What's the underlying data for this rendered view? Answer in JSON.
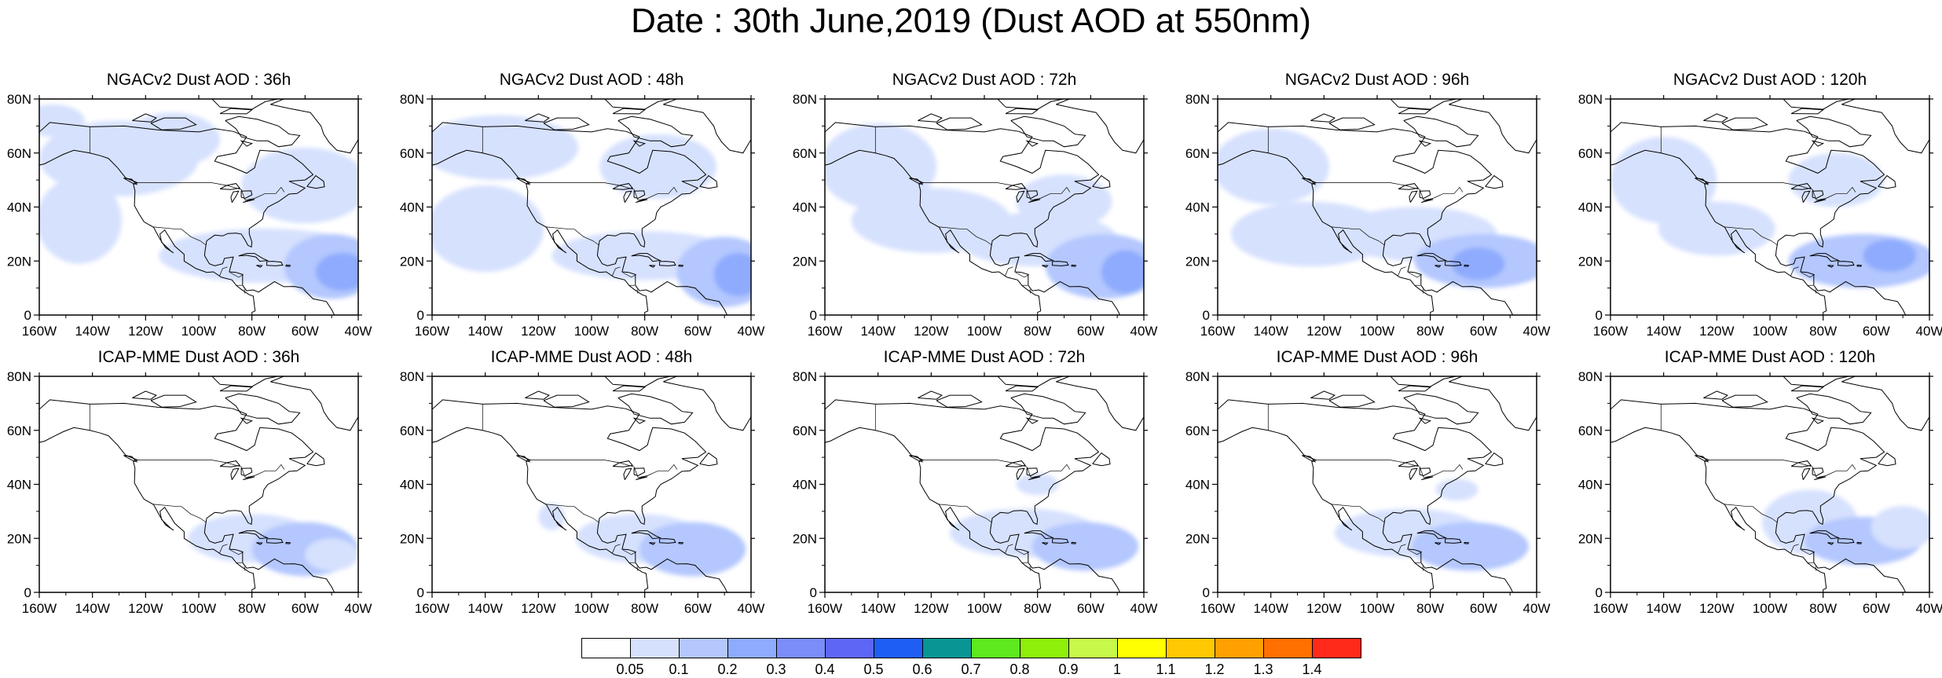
{
  "title": "Date : 30th June,2019 (Dust AOD at 550nm)",
  "lon_ticks": [
    "160W",
    "140W",
    "120W",
    "100W",
    "80W",
    "60W",
    "40W"
  ],
  "lat_ticks": [
    "0",
    "20N",
    "40N",
    "60N",
    "80N"
  ],
  "map_extent": {
    "lon_min": -160,
    "lon_max": -40,
    "lat_min": 0,
    "lat_max": 80
  },
  "panels": [
    {
      "title": "NGACv2 Dust AOD : 36h",
      "model": "NGACv2",
      "lead": "36h",
      "blobs": [
        {
          "lon": -130,
          "lat": 58,
          "rlon": 30,
          "rlat": 14,
          "level": 0
        },
        {
          "lon": -145,
          "lat": 35,
          "rlon": 16,
          "rlat": 16,
          "level": 0
        },
        {
          "lon": -110,
          "lat": 65,
          "rlon": 18,
          "rlat": 10,
          "level": 0
        },
        {
          "lon": -60,
          "lat": 48,
          "rlon": 24,
          "rlat": 14,
          "level": 0
        },
        {
          "lon": -75,
          "lat": 22,
          "rlon": 40,
          "rlat": 10,
          "level": 0
        },
        {
          "lon": -50,
          "lat": 18,
          "rlon": 18,
          "rlat": 12,
          "level": 1
        },
        {
          "lon": -46,
          "lat": 16,
          "rlon": 10,
          "rlat": 7,
          "level": 2
        },
        {
          "lon": -155,
          "lat": 72,
          "rlon": 12,
          "rlat": 6,
          "level": 0
        }
      ]
    },
    {
      "title": "NGACv2 Dust AOD : 48h",
      "model": "NGACv2",
      "lead": "48h",
      "blobs": [
        {
          "lon": -135,
          "lat": 62,
          "rlon": 30,
          "rlat": 12,
          "level": 0
        },
        {
          "lon": -140,
          "lat": 32,
          "rlon": 22,
          "rlat": 16,
          "level": 0
        },
        {
          "lon": -75,
          "lat": 55,
          "rlon": 22,
          "rlat": 12,
          "level": 0
        },
        {
          "lon": -80,
          "lat": 22,
          "rlon": 35,
          "rlat": 9,
          "level": 0
        },
        {
          "lon": -50,
          "lat": 16,
          "rlon": 18,
          "rlat": 13,
          "level": 1
        },
        {
          "lon": -45,
          "lat": 15,
          "rlon": 9,
          "rlat": 8,
          "level": 2
        }
      ]
    },
    {
      "title": "NGACv2 Dust AOD : 72h",
      "model": "NGACv2",
      "lead": "72h",
      "blobs": [
        {
          "lon": -140,
          "lat": 55,
          "rlon": 22,
          "rlat": 16,
          "level": 0
        },
        {
          "lon": -120,
          "lat": 35,
          "rlon": 30,
          "rlat": 12,
          "level": 0
        },
        {
          "lon": -80,
          "lat": 28,
          "rlon": 30,
          "rlat": 10,
          "level": 0
        },
        {
          "lon": -70,
          "lat": 42,
          "rlon": 18,
          "rlat": 10,
          "level": 0
        },
        {
          "lon": -55,
          "lat": 18,
          "rlon": 22,
          "rlat": 12,
          "level": 1
        },
        {
          "lon": -47,
          "lat": 16,
          "rlon": 9,
          "rlat": 8,
          "level": 2
        }
      ]
    },
    {
      "title": "NGACv2 Dust AOD : 96h",
      "model": "NGACv2",
      "lead": "96h",
      "blobs": [
        {
          "lon": -140,
          "lat": 55,
          "rlon": 22,
          "rlat": 14,
          "level": 0
        },
        {
          "lon": -125,
          "lat": 30,
          "rlon": 30,
          "rlat": 12,
          "level": 0
        },
        {
          "lon": -85,
          "lat": 30,
          "rlon": 30,
          "rlat": 10,
          "level": 0
        },
        {
          "lon": -60,
          "lat": 20,
          "rlon": 26,
          "rlat": 10,
          "level": 1
        },
        {
          "lon": -62,
          "lat": 19,
          "rlon": 10,
          "rlat": 6,
          "level": 2
        }
      ]
    },
    {
      "title": "NGACv2 Dust AOD : 120h",
      "model": "NGACv2",
      "lead": "120h",
      "blobs": [
        {
          "lon": -140,
          "lat": 50,
          "rlon": 20,
          "rlat": 16,
          "level": 0
        },
        {
          "lon": -120,
          "lat": 32,
          "rlon": 22,
          "rlat": 10,
          "level": 0
        },
        {
          "lon": -75,
          "lat": 50,
          "rlon": 18,
          "rlat": 10,
          "level": 0
        },
        {
          "lon": -65,
          "lat": 20,
          "rlon": 28,
          "rlat": 10,
          "level": 1
        },
        {
          "lon": -55,
          "lat": 22,
          "rlon": 10,
          "rlat": 6,
          "level": 2
        }
      ]
    },
    {
      "title": "ICAP-MME Dust AOD : 36h",
      "model": "ICAP-MME",
      "lead": "36h",
      "blobs": [
        {
          "lon": -80,
          "lat": 20,
          "rlon": 24,
          "rlat": 9,
          "level": 0
        },
        {
          "lon": -60,
          "lat": 16,
          "rlon": 20,
          "rlat": 10,
          "level": 1
        },
        {
          "lon": -50,
          "lat": 14,
          "rlon": 10,
          "rlat": 6,
          "level": 0
        }
      ]
    },
    {
      "title": "ICAP-MME Dust AOD : 48h",
      "model": "ICAP-MME",
      "lead": "48h",
      "blobs": [
        {
          "lon": -82,
          "lat": 20,
          "rlon": 24,
          "rlat": 9,
          "level": 0
        },
        {
          "lon": -62,
          "lat": 16,
          "rlon": 20,
          "rlat": 10,
          "level": 1
        },
        {
          "lon": -115,
          "lat": 28,
          "rlon": 5,
          "rlat": 5,
          "level": 0
        }
      ]
    },
    {
      "title": "ICAP-MME Dust AOD : 72h",
      "model": "ICAP-MME",
      "lead": "72h",
      "blobs": [
        {
          "lon": -85,
          "lat": 22,
          "rlon": 28,
          "rlat": 9,
          "level": 0
        },
        {
          "lon": -62,
          "lat": 17,
          "rlon": 20,
          "rlat": 9,
          "level": 1
        },
        {
          "lon": -80,
          "lat": 40,
          "rlon": 8,
          "rlat": 4,
          "level": 0
        }
      ]
    },
    {
      "title": "ICAP-MME Dust AOD : 96h",
      "model": "ICAP-MME",
      "lead": "96h",
      "blobs": [
        {
          "lon": -88,
          "lat": 22,
          "rlon": 28,
          "rlat": 9,
          "level": 0
        },
        {
          "lon": -65,
          "lat": 17,
          "rlon": 22,
          "rlat": 9,
          "level": 1
        },
        {
          "lon": -70,
          "lat": 38,
          "rlon": 8,
          "rlat": 4,
          "level": 0
        }
      ]
    },
    {
      "title": "ICAP-MME Dust AOD : 120h",
      "model": "ICAP-MME",
      "lead": "120h",
      "blobs": [
        {
          "lon": -85,
          "lat": 26,
          "rlon": 18,
          "rlat": 12,
          "level": 0
        },
        {
          "lon": -65,
          "lat": 19,
          "rlon": 22,
          "rlat": 9,
          "level": 1
        },
        {
          "lon": -50,
          "lat": 24,
          "rlon": 12,
          "rlat": 8,
          "level": 0
        }
      ]
    }
  ],
  "colorbar": {
    "colors": [
      "#ffffff",
      "#d6e1fe",
      "#b4c7fe",
      "#8eabfd",
      "#7a8dfb",
      "#5e66f5",
      "#1e5ef5",
      "#0a9595",
      "#5ee81e",
      "#8ef00a",
      "#c8f84a",
      "#ffff00",
      "#ffc800",
      "#ffa000",
      "#ff7000",
      "#ff2a1a"
    ],
    "labels": [
      "0.05",
      "0.1",
      "0.2",
      "0.3",
      "0.4",
      "0.5",
      "0.6",
      "0.7",
      "0.8",
      "0.9",
      "1",
      "1.1",
      "1.2",
      "1.3",
      "1.4"
    ]
  }
}
